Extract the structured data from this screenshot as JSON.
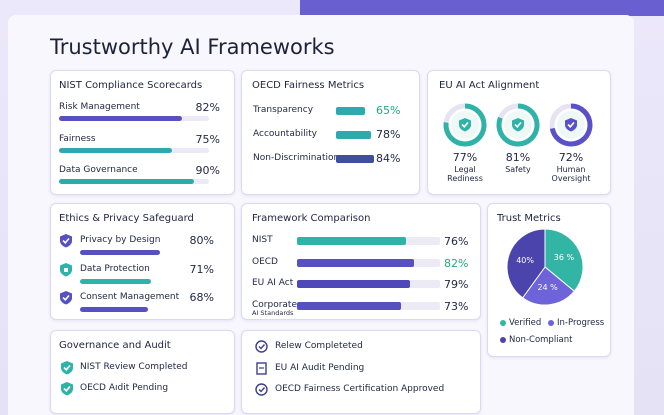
{
  "header": {
    "title": "Trustworthy AI Frameworks"
  },
  "nist": {
    "title": "NIST Compliance Scorecards",
    "items": [
      {
        "label": "Risk Management",
        "value": 82,
        "value_label": "82%",
        "color": "#5650c0"
      },
      {
        "label": "Fairness",
        "value": 75,
        "value_label": "75%",
        "color": "#2fa9b0"
      },
      {
        "label": "Data Governance",
        "value": 90,
        "value_label": "90%",
        "color": "#2fa9b0"
      }
    ]
  },
  "oecd": {
    "title": "OECD Fairness Metrics",
    "items": [
      {
        "label": "Transparency",
        "value": 65,
        "value_label": "65%",
        "color": "#2fa9b0",
        "value_color": "#22a97a"
      },
      {
        "label": "Accountability",
        "value": 78,
        "value_label": "78%",
        "color": "#2fa9b0",
        "value_color": "#222a44"
      },
      {
        "label": "Non-Discrimination",
        "value": 84,
        "value_label": "84%",
        "color": "#3f4f9a",
        "value_color": "#222a44"
      }
    ]
  },
  "eu": {
    "title": "EU AI Act Alignment",
    "items": [
      {
        "label": [
          "Legal",
          "Rediness"
        ],
        "value": 77,
        "value_label": "77%",
        "color": "#2fb3a8"
      },
      {
        "label": [
          "Safety"
        ],
        "value": 81,
        "value_label": "81%",
        "color": "#2fb3a8"
      },
      {
        "label": [
          "Human",
          "Oversight"
        ],
        "value": 72,
        "value_label": "72%",
        "color": "#5a50c8"
      }
    ]
  },
  "ethics": {
    "title": "Ethics & Privacy Safeguard",
    "items": [
      {
        "label": "Privacy by Design",
        "value": 80,
        "value_label": "80%",
        "color": "#5650c0"
      },
      {
        "label": "Data Protection",
        "value": 71,
        "value_label": "71%",
        "color": "#2fb3a8"
      },
      {
        "label": "Consent Management",
        "value": 68,
        "value_label": "68%",
        "color": "#5650c0"
      }
    ]
  },
  "comparison": {
    "title": "Framework Comparison",
    "items": [
      {
        "label": [
          "NIST"
        ],
        "value": 76,
        "value_label": "76%",
        "color": "#2fb3a8",
        "value_color": "#222a44"
      },
      {
        "label": [
          "OECD"
        ],
        "value": 82,
        "value_label": "82%",
        "color": "#5650c0",
        "value_color": "#22a97a"
      },
      {
        "label": [
          "EU AI Act"
        ],
        "value": 79,
        "value_label": "79%",
        "color": "#4f48b8",
        "value_color": "#222a44"
      },
      {
        "label": [
          "Corporate",
          "AI Standards"
        ],
        "value": 73,
        "value_label": "73%",
        "color": "#5650c0",
        "value_color": "#222a44"
      }
    ]
  },
  "trust": {
    "title": "Trust Metrics",
    "series": [
      {
        "name": "Verified",
        "value": 36,
        "value_label": "36 %",
        "color": "#33b5a5"
      },
      {
        "name": "In-Progress",
        "value": 24,
        "value_label": "24 %",
        "color": "#6e63d8"
      },
      {
        "name": "Non-Compliant",
        "value": 40,
        "value_label": "40%",
        "color": "#4b44ad"
      }
    ]
  },
  "governance": {
    "title": "Governance and Audit",
    "items": [
      "NIST Review Completed",
      "OECD Aıdit Pending"
    ]
  },
  "review": {
    "title": "Relew Completeted",
    "items": [
      "EU AI Audit Pending",
      "OECD Fairness Certification Approved"
    ]
  }
}
